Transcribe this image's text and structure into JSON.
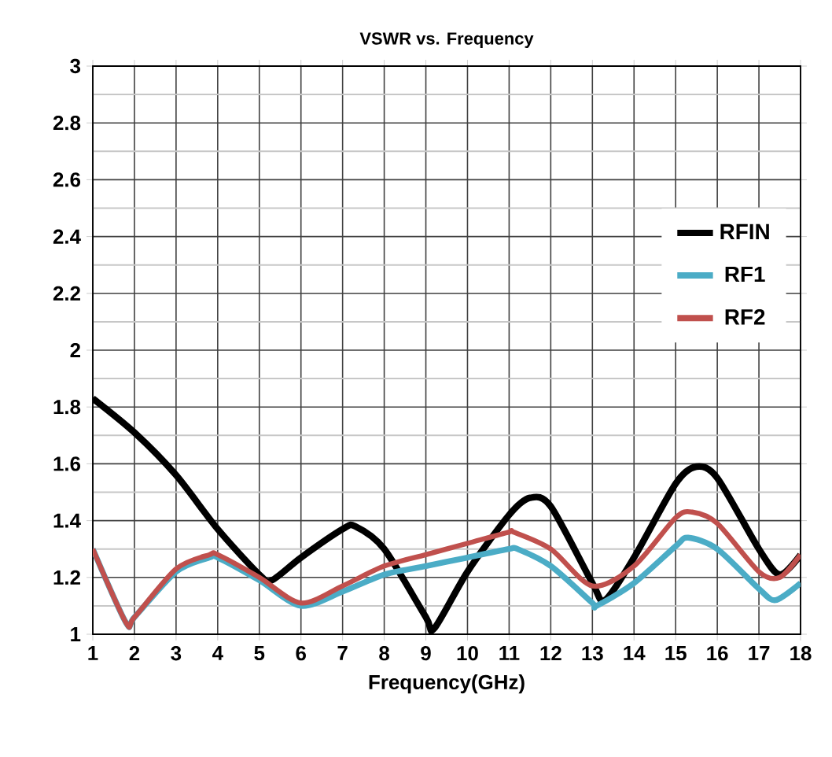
{
  "chart_data": {
    "type": "line",
    "title": "VSWR vs. Frequency",
    "xlabel": "Frequency(GHz)",
    "xlim": [
      1,
      18
    ],
    "xticks": [
      1,
      2,
      3,
      4,
      5,
      6,
      7,
      8,
      9,
      10,
      11,
      12,
      13,
      14,
      15,
      16,
      17,
      18
    ],
    "ylim": [
      1,
      3
    ],
    "yticks": [
      1,
      1.2,
      1.4,
      1.6,
      1.8,
      2,
      2.2,
      2.4,
      2.6,
      2.8,
      3
    ],
    "grid": true,
    "legend": "right",
    "marker": "none",
    "line_style": "solid",
    "series": [
      {
        "name": "RFIN",
        "color": "#000000",
        "x": [
          1,
          2,
          3,
          4,
          5,
          5.3,
          6,
          7,
          7.3,
          8,
          9,
          9.2,
          10,
          11,
          11.5,
          12,
          13,
          13.3,
          14,
          15,
          15.5,
          16,
          17,
          17.5,
          18
        ],
        "values": [
          1.83,
          1.71,
          1.56,
          1.37,
          1.21,
          1.19,
          1.27,
          1.37,
          1.38,
          1.3,
          1.06,
          1.02,
          1.22,
          1.42,
          1.48,
          1.45,
          1.18,
          1.12,
          1.27,
          1.53,
          1.59,
          1.55,
          1.3,
          1.21,
          1.28
        ]
      },
      {
        "name": "RF1",
        "color": "#4bacc6",
        "x": [
          1,
          1.8,
          2,
          3,
          3.8,
          4,
          5,
          6,
          7,
          8,
          9,
          10,
          11,
          11.2,
          12,
          13,
          13.1,
          14,
          15,
          15.3,
          16,
          17,
          17.4,
          18
        ],
        "values": [
          1.3,
          1.04,
          1.06,
          1.22,
          1.27,
          1.27,
          1.19,
          1.1,
          1.15,
          1.21,
          1.24,
          1.27,
          1.3,
          1.3,
          1.24,
          1.11,
          1.1,
          1.18,
          1.31,
          1.34,
          1.3,
          1.16,
          1.12,
          1.18
        ]
      },
      {
        "name": "RF2",
        "color": "#c0504d",
        "x": [
          1,
          1.8,
          2,
          3,
          3.8,
          4,
          5,
          6,
          7,
          8,
          9,
          10,
          11,
          11.1,
          12,
          13,
          14,
          15,
          15.4,
          16,
          17,
          17.5,
          18
        ],
        "values": [
          1.3,
          1.04,
          1.06,
          1.23,
          1.28,
          1.28,
          1.2,
          1.11,
          1.17,
          1.24,
          1.28,
          1.32,
          1.36,
          1.36,
          1.3,
          1.17,
          1.24,
          1.41,
          1.43,
          1.39,
          1.22,
          1.2,
          1.28
        ]
      }
    ]
  }
}
